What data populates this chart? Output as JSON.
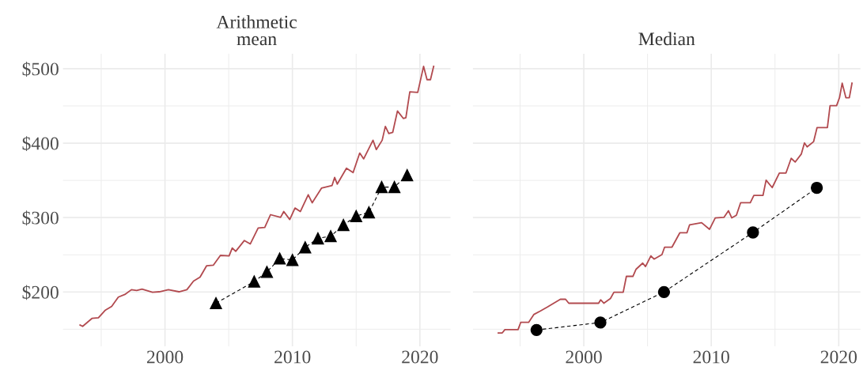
{
  "chart_data": [
    {
      "type": "line",
      "title": "Arithmetic\nmean",
      "xlim": [
        1992,
        2022.4
      ],
      "ylim": [
        127,
        520
      ],
      "xticks": [
        {
          "value": 1995,
          "label": null
        },
        2000,
        {
          "value": 2005,
          "label": null
        },
        2010,
        {
          "value": 2015,
          "label": null
        },
        2020
      ],
      "yticks": [
        {
          "value": 150,
          "label": null
        },
        {
          "value": 200,
          "label": "$200"
        },
        {
          "value": 250,
          "label": null
        },
        {
          "value": 300,
          "label": "$300"
        },
        {
          "value": 350,
          "label": null
        },
        {
          "value": 400,
          "label": "$400"
        },
        {
          "value": 450,
          "label": null
        },
        {
          "value": 500,
          "label": "$500"
        }
      ],
      "grid": true,
      "series": [
        {
          "color": "#b24a4f",
          "marker": "none",
          "line_style": "solid",
          "x": [
            1993.34,
            1993.54,
            1994.27,
            1994.78,
            1995.3,
            1995.82,
            1996.34,
            1996.85,
            1997.37,
            1997.78,
            1998.2,
            1999.02,
            1999.55,
            2000.27,
            2001.1,
            2001.72,
            2002.24,
            2002.75,
            2003.27,
            2003.79,
            2004.35,
            2005.03,
            2005.28,
            2005.55,
            2006.23,
            2006.69,
            2007.31,
            2007.83,
            2008.28,
            2009.07,
            2009.32,
            2009.79,
            2010.2,
            2010.62,
            2011.24,
            2011.55,
            2012.28,
            2013.11,
            2013.31,
            2013.52,
            2014.24,
            2014.76,
            2015.28,
            2015.59,
            2016.32,
            2016.58,
            2017.04,
            2017.29,
            2017.56,
            2017.87,
            2018.24,
            2018.7,
            2018.9,
            2019.21,
            2019.83,
            2020.29,
            2020.56,
            2020.83,
            2021.08
          ],
          "values": [
            155.6,
            153.8,
            164.5,
            165.3,
            175.3,
            180.6,
            193.1,
            196.7,
            203.1,
            202.1,
            203.9,
            199.6,
            200.3,
            203.1,
            200.3,
            203.1,
            214.6,
            219.9,
            235.3,
            236.0,
            249.2,
            248.5,
            259.2,
            254.6,
            269.2,
            264.5,
            286.0,
            286.7,
            303.9,
            300.3,
            308.1,
            297.4,
            312.8,
            308.1,
            330.7,
            319.9,
            339.6,
            343.2,
            353.9,
            345.0,
            366.3,
            360.4,
            386.7,
            378.9,
            403.9,
            391.4,
            403.9,
            422.5,
            412.9,
            414.6,
            443.2,
            433.2,
            434.3,
            468.9,
            468.2,
            503.2,
            485.3,
            485.3,
            503.2
          ]
        },
        {
          "color": "#000000",
          "marker": "triangle",
          "line_style": "dashed",
          "x": [
            2004,
            2007,
            2008,
            2009,
            2010,
            2011,
            2012,
            2013,
            2014,
            2015,
            2016,
            2017,
            2018,
            2019
          ],
          "values": [
            185,
            214,
            227,
            245,
            243,
            260,
            272,
            275,
            290,
            302,
            307,
            341,
            341,
            357
          ]
        }
      ]
    },
    {
      "type": "line",
      "title": "Median",
      "xlim": [
        1991.3,
        2021.7
      ],
      "ylim": [
        127,
        520
      ],
      "tick_labels": "x",
      "xticks": [
        {
          "value": 1995,
          "label": null
        },
        2000,
        {
          "value": 2005,
          "label": null
        },
        2010,
        {
          "value": 2015,
          "label": null
        },
        2020
      ],
      "yticks": [
        {
          "value": 150,
          "label": null
        },
        {
          "value": 200,
          "label": null
        },
        {
          "value": 250,
          "label": null
        },
        {
          "value": 300,
          "label": null
        },
        {
          "value": 350,
          "label": null
        },
        {
          "value": 400,
          "label": null
        },
        {
          "value": 450,
          "label": null
        },
        {
          "value": 500,
          "label": null
        }
      ],
      "grid": true,
      "series": [
        {
          "color": "#b24a4f",
          "marker": "none",
          "line_style": "solid",
          "x": [
            1993.29,
            1993.6,
            1993.81,
            1994.84,
            1995.05,
            1995.67,
            1996.09,
            1996.6,
            1997.12,
            1997.64,
            1998.16,
            1998.57,
            1998.82,
            2001.16,
            2001.32,
            2001.57,
            2002.09,
            2002.36,
            2003.09,
            2003.34,
            2003.85,
            2004.1,
            2004.62,
            2004.84,
            2005.26,
            2005.51,
            2006.13,
            2006.34,
            2006.92,
            2007.53,
            2008.09,
            2008.3,
            2009.24,
            2009.86,
            2010.31,
            2010.99,
            2011.35,
            2011.61,
            2011.97,
            2012.3,
            2013.06,
            2013.34,
            2014.06,
            2014.3,
            2014.78,
            2015.34,
            2015.86,
            2016.27,
            2016.58,
            2017.06,
            2017.31,
            2017.52,
            2018.03,
            2018.3,
            2019.11,
            2019.32,
            2019.83,
            2020.06,
            2020.27,
            2020.56,
            2020.83,
            2021.04
          ],
          "values": [
            145.0,
            145.0,
            149.5,
            149.5,
            159.2,
            159.2,
            169.9,
            174.5,
            179.5,
            184.9,
            190.2,
            190.2,
            184.9,
            184.9,
            189.5,
            184.9,
            191.3,
            199.6,
            199.6,
            221.0,
            221.0,
            230.6,
            238.8,
            234.2,
            248.5,
            244.2,
            250.3,
            260.3,
            260.3,
            279.5,
            279.5,
            290.3,
            293.1,
            284.2,
            299.6,
            300.3,
            309.2,
            299.6,
            303.1,
            319.9,
            319.9,
            329.9,
            329.9,
            350.3,
            340.3,
            359.9,
            359.9,
            379.6,
            374.6,
            385.3,
            400.3,
            395.0,
            402.1,
            421.0,
            421.0,
            450.4,
            450.4,
            461.1,
            480.7,
            461.1,
            461.1,
            480.7
          ]
        },
        {
          "color": "#000000",
          "marker": "circle",
          "line_style": "dashed",
          "x": [
            1996.29,
            2001.3,
            2006.29,
            2013.27,
            2018.28
          ],
          "values": [
            149,
            159,
            200,
            280,
            340
          ]
        }
      ]
    }
  ]
}
